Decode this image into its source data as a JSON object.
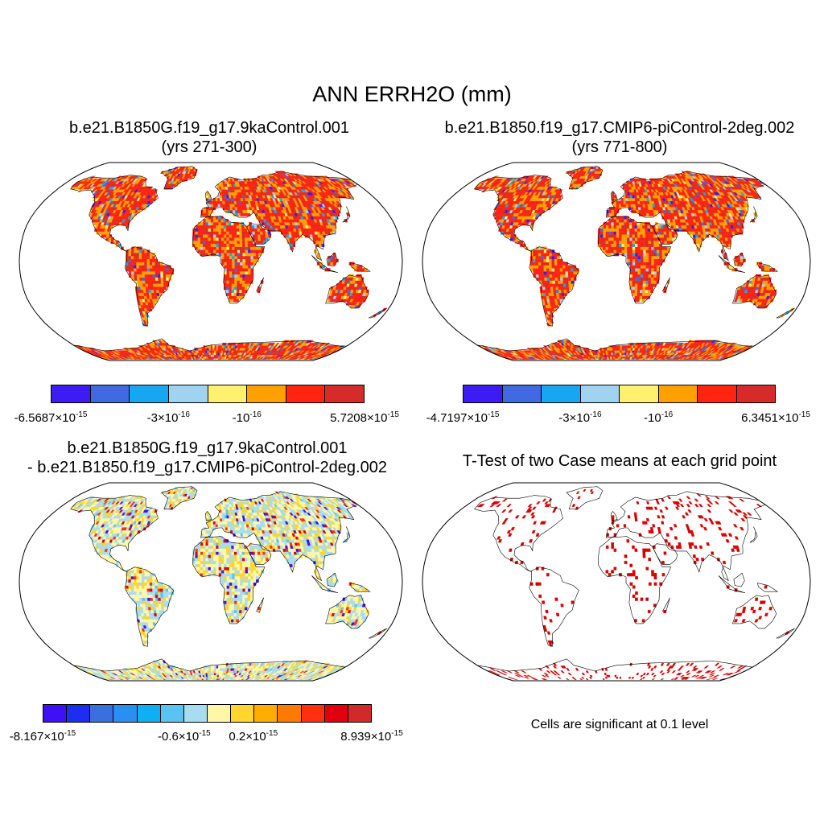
{
  "figure": {
    "title": "ANN ERRH2O (mm)"
  },
  "panels": [
    {
      "id": "case1",
      "title": "b.e21.B1850G.f19_g17.9kaControl.001\n(yrs 271-300)",
      "colorbar": {
        "colors": [
          "#3d1bf5",
          "#4169e1",
          "#17a7f0",
          "#9fd3ef",
          "#fff06e",
          "#ffa000",
          "#ff2410",
          "#d72a2a"
        ],
        "labels": [
          {
            "mant": "-6.5687",
            "exp": "-15"
          },
          {
            "mant": "-3",
            "exp": "-16"
          },
          {
            "mant": "-10",
            "exp": "-16",
            "plain": true
          },
          {
            "mant": "5.7208",
            "exp": "-15"
          }
        ]
      }
    },
    {
      "id": "case2",
      "title": "b.e21.B1850.f19_g17.CMIP6-piControl-2deg.002\n(yrs 771-800)",
      "colorbar": {
        "colors": [
          "#3d1bf5",
          "#4169e1",
          "#17a7f0",
          "#9fd3ef",
          "#fff06e",
          "#ffa000",
          "#ff2410",
          "#d72a2a"
        ],
        "labels": [
          {
            "mant": "-4.7197",
            "exp": "-15"
          },
          {
            "mant": "-3",
            "exp": "-16"
          },
          {
            "mant": "-10",
            "exp": "-16",
            "plain": true
          },
          {
            "mant": "6.3451",
            "exp": "-15"
          }
        ]
      }
    },
    {
      "id": "diff",
      "title": "b.e21.B1850G.f19_g17.9kaControl.001\n- b.e21.B1850.f19_g17.CMIP6-piControl-2deg.002",
      "colorbar": {
        "colors": [
          "#3d10f5",
          "#1d2ef0",
          "#3a6fe0",
          "#2a8ff0",
          "#0db0f0",
          "#5cc3f0",
          "#a8dcef",
          "#fff7a8",
          "#ffd52e",
          "#ffad00",
          "#ff7a00",
          "#ff3010",
          "#e0000e",
          "#d22a2a"
        ],
        "labels": [
          {
            "mant": "-8.167",
            "exp": "-15"
          },
          {
            "mant": "-0.6",
            "exp": "-15"
          },
          {
            "mant": "0.2",
            "exp": "-15"
          },
          {
            "mant": "8.939",
            "exp": "-15"
          }
        ]
      }
    },
    {
      "id": "ttest",
      "title": "T-Test of two Case means at each grid point",
      "note": "Cells are significant at 0.1 level"
    }
  ],
  "fill_styles": {
    "case1": {
      "base": [
        "#ff2410",
        "#ffa000",
        "#ff2410",
        "#d72a2a",
        "#ffa000",
        "#ff2410"
      ],
      "accent": [
        "#3d1bf5",
        "#4169e1",
        "#17a7f0",
        "#9fd3ef",
        "#fff06e"
      ]
    },
    "case2": {
      "base": [
        "#ff2410",
        "#ffa000",
        "#ff2410",
        "#d72a2a",
        "#ffa000",
        "#ff2410"
      ],
      "accent": [
        "#3d1bf5",
        "#4169e1",
        "#17a7f0",
        "#9fd3ef",
        "#fff06e"
      ]
    },
    "diff": {
      "base": [
        "#fff7a8",
        "#a8dcef",
        "#fff7a8",
        "#a8dcef",
        "#ffd52e"
      ],
      "accent": [
        "#3d10f5",
        "#ff3010",
        "#5cc3f0",
        "#e0000e"
      ]
    },
    "ttest": {
      "base": [
        "#ffffff"
      ],
      "accent": [
        "#e00000",
        "#d20000"
      ]
    }
  }
}
